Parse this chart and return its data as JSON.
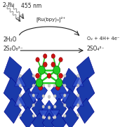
{
  "background_color": "#ffffff",
  "fig_width": 1.71,
  "fig_height": 1.81,
  "top_text": {
    "hv_label": "2 hν",
    "nm_label": "455 nm",
    "ru_label": "[Ru(bpy)₃]²⁺",
    "left_top": "2H₂O",
    "left_bot": "2S₂O₈²⁻",
    "right_top": "O₂ + 4H+ 4e⁻",
    "right_bot": "2SO₄²⁻"
  },
  "colors": {
    "blue_poly": "#1a3aaa",
    "blue_poly_mid": "#2244bb",
    "blue_poly_light": "#3355cc",
    "green_ni": "#22cc22",
    "red_o": "#cc1111",
    "white_link": "#cccccc",
    "arrow_color": "#333333",
    "text_color": "#222222",
    "wavy_color": "#999999"
  }
}
